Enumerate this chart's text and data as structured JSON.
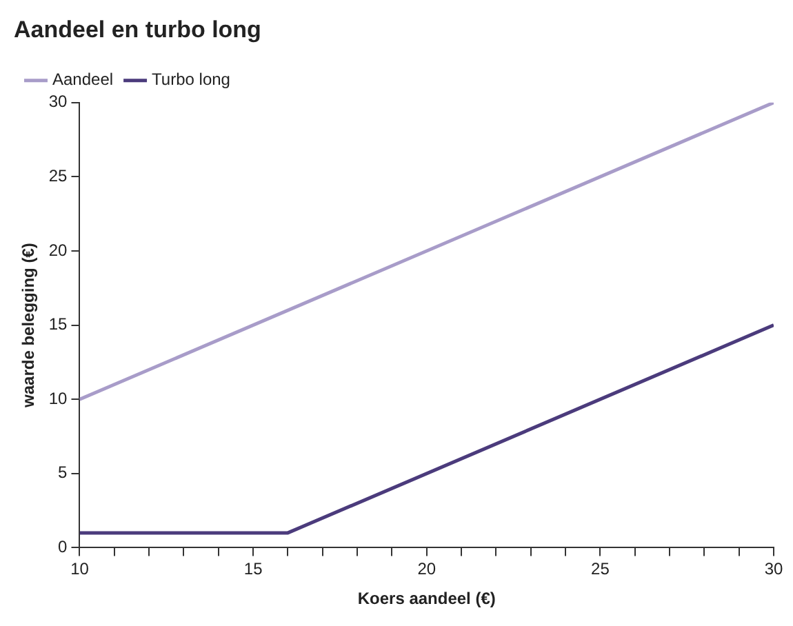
{
  "chart_data": {
    "type": "line",
    "title": "Aandeel en turbo long",
    "xlabel": "Koers aandeel (€)",
    "ylabel": "waarde belegging (€)",
    "series": [
      {
        "name": "Aandeel",
        "color": "#a89cc9",
        "x": [
          10,
          30
        ],
        "values": [
          10,
          30
        ]
      },
      {
        "name": "Turbo long",
        "color": "#4b3b7c",
        "x": [
          10,
          16,
          30
        ],
        "values": [
          1,
          1,
          15
        ]
      }
    ],
    "xlim": [
      10,
      30
    ],
    "xticks": [
      10,
      {
        "value": 11,
        "label": null
      },
      {
        "value": 12,
        "label": null
      },
      {
        "value": 13,
        "label": null
      },
      {
        "value": 14,
        "label": null
      },
      15,
      {
        "value": 16,
        "label": null
      },
      {
        "value": 17,
        "label": null
      },
      {
        "value": 18,
        "label": null
      },
      {
        "value": 19,
        "label": null
      },
      20,
      {
        "value": 21,
        "label": null
      },
      {
        "value": 22,
        "label": null
      },
      {
        "value": 23,
        "label": null
      },
      {
        "value": 24,
        "label": null
      },
      25,
      {
        "value": 26,
        "label": null
      },
      {
        "value": 27,
        "label": null
      },
      {
        "value": 28,
        "label": null
      },
      {
        "value": 29,
        "label": null
      },
      30
    ],
    "ylim": [
      0,
      30
    ],
    "yticks": [
      0,
      5,
      10,
      15,
      20,
      25,
      30
    ],
    "grid": false,
    "legend": "top left",
    "marker": "none",
    "line_style": "solid"
  }
}
